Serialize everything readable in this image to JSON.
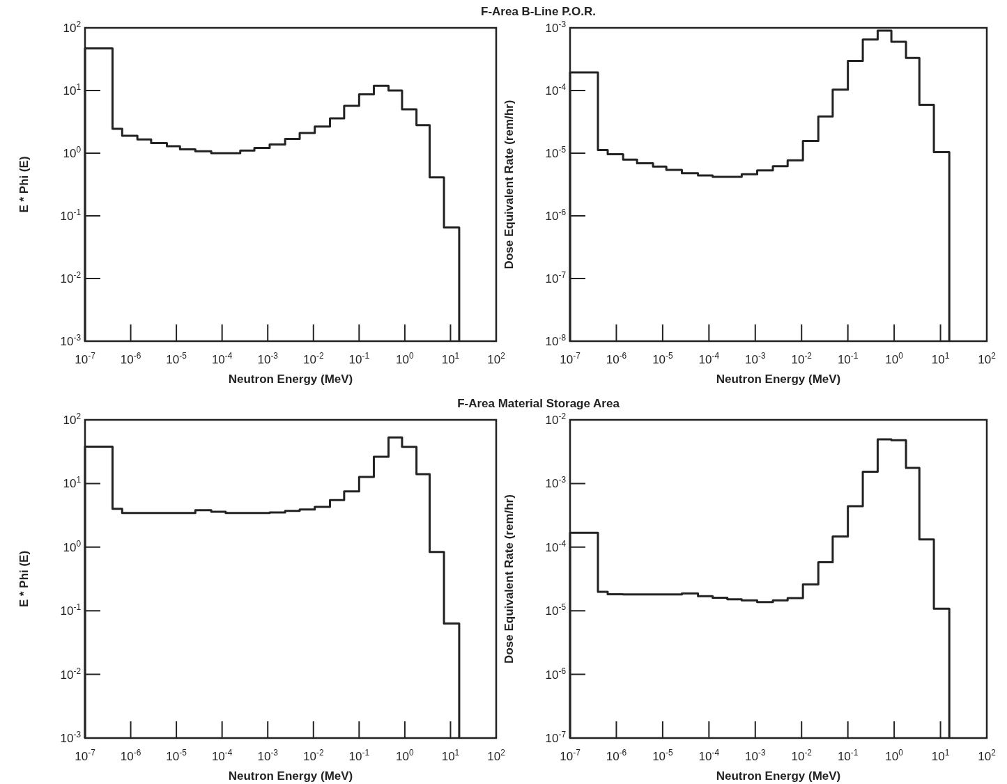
{
  "chart_data": [
    {
      "type": "histogram",
      "title": "F-Area B-Line P.O.R.",
      "xlabel": "Neutron Energy (MeV)",
      "ylabel": "E * Phi (E)",
      "log": "xy",
      "grid": false,
      "color": "#222222",
      "bins": [
        1e-07,
        4e-07,
        6.5e-07,
        1.4e-06,
        2.8e-06,
        6.2e-06,
        1.2e-05,
        2.6e-05,
        5.8e-05,
        0.00012,
        0.00025,
        0.00051,
        0.0011,
        0.0024,
        0.005,
        0.0107,
        0.023,
        0.047,
        0.1,
        0.21,
        0.44,
        0.87,
        1.8,
        3.5,
        7.2,
        15.5
      ],
      "values": [
        47,
        2.45,
        1.9,
        1.66,
        1.45,
        1.29,
        1.15,
        1.07,
        1.0,
        1.0,
        1.1,
        1.21,
        1.38,
        1.69,
        2.1,
        2.66,
        3.6,
        5.7,
        8.7,
        11.9,
        10,
        5.0,
        2.8,
        0.41,
        0.065
      ],
      "xlim": [
        1e-07,
        100
      ],
      "ylim": [
        0.001,
        100
      ],
      "xticks": [
        {
          "value": 1e-07,
          "label": "10$^{-7}$"
        },
        {
          "value": 1e-06,
          "label": "10$^{-6}$"
        },
        {
          "value": 1e-05,
          "label": "10$^{-5}$"
        },
        {
          "value": 0.0001,
          "label": "10$^{-4}$"
        },
        {
          "value": 0.001,
          "label": "10$^{-3}$"
        },
        {
          "value": 0.01,
          "label": "10$^{-2}$"
        },
        {
          "value": 0.1,
          "label": "10$^{-1}$"
        },
        {
          "value": 1,
          "label": "10$^{0}$"
        },
        {
          "value": 10,
          "label": "10$^{1}$"
        },
        {
          "value": 100,
          "label": "10$^{2}$"
        }
      ],
      "yticks": [
        {
          "value": 0.001,
          "label": "10$^{-3}$"
        },
        {
          "value": 0.01,
          "label": "10$^{-2}$"
        },
        {
          "value": 0.1,
          "label": "10$^{-1}$"
        },
        {
          "value": 1,
          "label": "10$^{0}$"
        },
        {
          "value": 10,
          "label": "10$^{1}$"
        },
        {
          "value": 100,
          "label": "10$^{2}$"
        }
      ]
    },
    {
      "type": "histogram",
      "xlabel": "Neutron Energy (MeV)",
      "ylabel": "Dose Equivalent Rate (rem/hr)",
      "log": "xy",
      "grid": false,
      "color": "#222222",
      "bins": [
        1e-07,
        4e-07,
        6.5e-07,
        1.4e-06,
        2.8e-06,
        6.2e-06,
        1.2e-05,
        2.6e-05,
        5.8e-05,
        0.00012,
        0.00025,
        0.00051,
        0.0011,
        0.0024,
        0.005,
        0.0107,
        0.023,
        0.047,
        0.1,
        0.21,
        0.44,
        0.87,
        1.8,
        3.5,
        7.2,
        15.5
      ],
      "values": [
        0.000195,
        1.12e-05,
        9.6e-06,
        7.9e-06,
        6.9e-06,
        6.1e-06,
        5.4e-06,
        4.8e-06,
        4.4e-06,
        4.2e-06,
        4.2e-06,
        4.6e-06,
        5.3e-06,
        6.2e-06,
        7.7e-06,
        1.56e-05,
        3.86e-05,
        0.000103,
        0.000296,
        0.00065,
        0.0009,
        0.0006,
        0.00033,
        5.9e-05,
        1.04e-05
      ],
      "xlim": [
        1e-07,
        100
      ],
      "ylim": [
        1e-08,
        0.001
      ],
      "xticks": [
        {
          "value": 1e-07,
          "label": "10$^{-7}$"
        },
        {
          "value": 1e-06,
          "label": "10$^{-6}$"
        },
        {
          "value": 1e-05,
          "label": "10$^{-5}$"
        },
        {
          "value": 0.0001,
          "label": "10$^{-4}$"
        },
        {
          "value": 0.001,
          "label": "10$^{-3}$"
        },
        {
          "value": 0.01,
          "label": "10$^{-2}$"
        },
        {
          "value": 0.1,
          "label": "10$^{-1}$"
        },
        {
          "value": 1,
          "label": "10$^{0}$"
        },
        {
          "value": 10,
          "label": "10$^{1}$"
        },
        {
          "value": 100,
          "label": "10$^{2}$"
        }
      ],
      "yticks": [
        {
          "value": 1e-08,
          "label": "10$^{-8}$"
        },
        {
          "value": 1e-07,
          "label": "10$^{-7}$"
        },
        {
          "value": 1e-06,
          "label": "10$^{-6}$"
        },
        {
          "value": 1e-05,
          "label": "10$^{-5}$"
        },
        {
          "value": 0.0001,
          "label": "10$^{-4}$"
        },
        {
          "value": 0.001,
          "label": "10$^{-3}$"
        }
      ]
    },
    {
      "type": "histogram",
      "title": "F-Area Material Storage Area",
      "xlabel": "Neutron Energy (MeV)",
      "ylabel": "E * Phi (E)",
      "log": "xy",
      "grid": false,
      "color": "#222222",
      "bins": [
        1e-07,
        4e-07,
        6.5e-07,
        1.4e-06,
        2.8e-06,
        6.2e-06,
        1.2e-05,
        2.6e-05,
        5.8e-05,
        0.00012,
        0.00025,
        0.00051,
        0.0011,
        0.0024,
        0.005,
        0.0107,
        0.023,
        0.047,
        0.1,
        0.21,
        0.44,
        0.87,
        1.8,
        3.5,
        7.2,
        15.5
      ],
      "values": [
        38,
        4.0,
        3.45,
        3.45,
        3.45,
        3.45,
        3.45,
        3.8,
        3.6,
        3.45,
        3.45,
        3.45,
        3.5,
        3.7,
        3.9,
        4.3,
        5.5,
        7.5,
        12.7,
        26.3,
        53,
        37.6,
        14.0,
        0.84,
        0.063
      ],
      "xlim": [
        1e-07,
        100
      ],
      "ylim": [
        0.001,
        100
      ],
      "xticks": [
        {
          "value": 1e-07,
          "label": "10$^{-7}$"
        },
        {
          "value": 1e-06,
          "label": "10$^{-6}$"
        },
        {
          "value": 1e-05,
          "label": "10$^{-5}$"
        },
        {
          "value": 0.0001,
          "label": "10$^{-4}$"
        },
        {
          "value": 0.001,
          "label": "10$^{-3}$"
        },
        {
          "value": 0.01,
          "label": "10$^{-2}$"
        },
        {
          "value": 0.1,
          "label": "10$^{-1}$"
        },
        {
          "value": 1,
          "label": "10$^{0}$"
        },
        {
          "value": 10,
          "label": "10$^{1}$"
        },
        {
          "value": 100,
          "label": "10$^{2}$"
        }
      ],
      "yticks": [
        {
          "value": 0.001,
          "label": "10$^{-3}$"
        },
        {
          "value": 0.01,
          "label": "10$^{-2}$"
        },
        {
          "value": 0.1,
          "label": "10$^{-1}$"
        },
        {
          "value": 1,
          "label": "10$^{0}$"
        },
        {
          "value": 10,
          "label": "10$^{1}$"
        },
        {
          "value": 100,
          "label": "10$^{2}$"
        }
      ]
    },
    {
      "type": "histogram",
      "xlabel": "Neutron Energy (MeV)",
      "ylabel": "Dose Equivalent Rate (rem/hr)",
      "log": "xy",
      "grid": false,
      "color": "#222222",
      "bins": [
        1e-07,
        4e-07,
        6.5e-07,
        1.4e-06,
        2.8e-06,
        6.2e-06,
        1.2e-05,
        2.6e-05,
        5.8e-05,
        0.00012,
        0.00025,
        0.00051,
        0.0011,
        0.0024,
        0.005,
        0.0107,
        0.023,
        0.047,
        0.1,
        0.21,
        0.44,
        0.87,
        1.8,
        3.5,
        7.2,
        15.5
      ],
      "values": [
        0.000168,
        1.99e-05,
        1.82e-05,
        1.8e-05,
        1.8e-05,
        1.8e-05,
        1.8e-05,
        1.88e-05,
        1.7e-05,
        1.6e-05,
        1.51e-05,
        1.46e-05,
        1.37e-05,
        1.46e-05,
        1.58e-05,
        2.6e-05,
        5.8e-05,
        0.000147,
        0.00044,
        0.00153,
        0.00495,
        0.0048,
        0.00176,
        0.000132,
        1.08e-05
      ],
      "xlim": [
        1e-07,
        100
      ],
      "ylim": [
        1e-07,
        0.01
      ],
      "xticks": [
        {
          "value": 1e-07,
          "label": "10$^{-7}$"
        },
        {
          "value": 1e-06,
          "label": "10$^{-6}$"
        },
        {
          "value": 1e-05,
          "label": "10$^{-5}$"
        },
        {
          "value": 0.0001,
          "label": "10$^{-4}$"
        },
        {
          "value": 0.001,
          "label": "10$^{-3}$"
        },
        {
          "value": 0.01,
          "label": "10$^{-2}$"
        },
        {
          "value": 0.1,
          "label": "10$^{-1}$"
        },
        {
          "value": 1,
          "label": "10$^{0}$"
        },
        {
          "value": 10,
          "label": "10$^{1}$"
        },
        {
          "value": 100,
          "label": "10$^{2}$"
        }
      ],
      "yticks": [
        {
          "value": 1e-07,
          "label": "10$^{-7}$"
        },
        {
          "value": 1e-06,
          "label": "10$^{-6}$"
        },
        {
          "value": 1e-05,
          "label": "10$^{-5}$"
        },
        {
          "value": 0.0001,
          "label": "10$^{-4}$"
        },
        {
          "value": 0.001,
          "label": "10$^{-3}$"
        },
        {
          "value": 0.01,
          "label": "10$^{-2}$"
        }
      ]
    }
  ]
}
